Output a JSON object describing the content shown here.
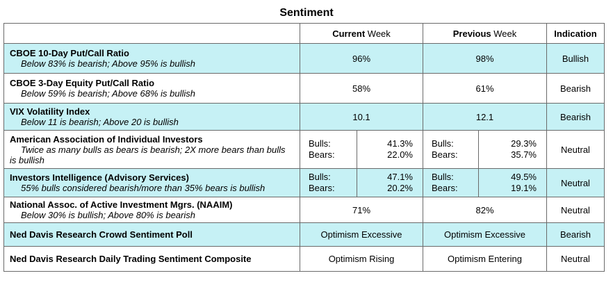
{
  "title": "Sentiment",
  "headers": {
    "current_prefix": "Current",
    "current_suffix": " Week",
    "previous_prefix": "Previous",
    "previous_suffix": " Week",
    "indication": "Indication"
  },
  "colors": {
    "highlight_row": "#c6f1f5",
    "border": "#6a6a6a"
  },
  "rows": [
    {
      "name": "CBOE 10-Day Put/Call Ratio",
      "desc": "Below 83% is bearish; Above 95% is bullish",
      "current": "96%",
      "previous": "98%",
      "indication": "Bullish"
    },
    {
      "name": "CBOE 3-Day Equity Put/Call Ratio",
      "desc": "Below 59% is bearish; Above 68% is bullish",
      "current": "58%",
      "previous": "61%",
      "indication": "Bearish"
    },
    {
      "name": "VIX Volatility Index",
      "desc": "Below 11 is bearish; Above 20 is bullish",
      "current": "10.1",
      "previous": "12.1",
      "indication": "Bearish"
    },
    {
      "name": "American Association of Individual Investors",
      "desc": "Twice as many bulls as bears is bearish; 2X more bears than bulls is bullish",
      "bulls_label": "Bulls:",
      "bears_label": "Bears:",
      "current_bulls": "41.3%",
      "current_bears": "22.0%",
      "previous_bulls": "29.3%",
      "previous_bears": "35.7%",
      "indication": "Neutral"
    },
    {
      "name": "Investors Intelligence (Advisory Services)",
      "desc": "55% bulls considered bearish/more than 35% bears is bullish",
      "bulls_label": "Bulls:",
      "bears_label": "Bears:",
      "current_bulls": "47.1%",
      "current_bears": "20.2%",
      "previous_bulls": "49.5%",
      "previous_bears": "19.1%",
      "indication": "Neutral"
    },
    {
      "name": "National Assoc. of Active Investment Mgrs. (NAAIM)",
      "desc": "Below 30% is bullish; Above 80% is bearish",
      "current": "71%",
      "previous": "82%",
      "indication": "Neutral"
    },
    {
      "name": "Ned Davis Research Crowd Sentiment Poll",
      "current": "Optimism Excessive",
      "previous": "Optimism Excessive",
      "indication": "Bearish"
    },
    {
      "name": "Ned Davis Research Daily Trading Sentiment Composite",
      "current": "Optimism Rising",
      "previous": "Optimism Entering",
      "indication": "Neutral"
    }
  ]
}
